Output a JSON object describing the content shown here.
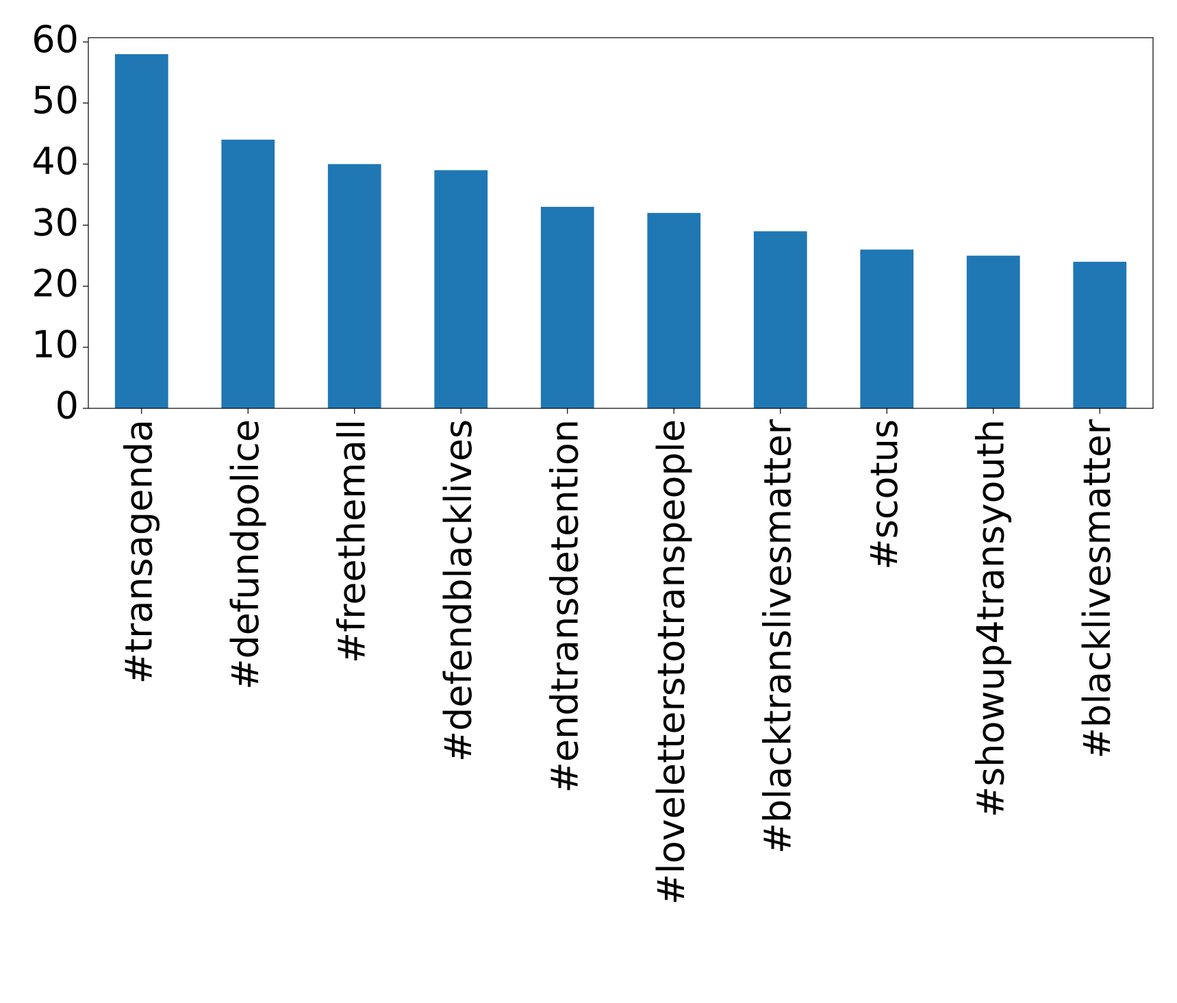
{
  "chart_data": {
    "type": "bar",
    "categories": [
      "#transagenda",
      "#defundpolice",
      "#freethemall",
      "#defendblacklives",
      "#endtransdetention",
      "#loveletterstotranspeople",
      "#blacktranslivesmatter",
      "#scotus",
      "#showup4transyouth",
      "#blacklivesmatter"
    ],
    "values": [
      58,
      44,
      40,
      39,
      33,
      32,
      29,
      26,
      25,
      24
    ],
    "color": "#1f77b4",
    "ylim": [
      0,
      60.7
    ],
    "yticks": [
      0,
      10,
      20,
      30,
      40,
      50,
      60
    ],
    "grid": false
  }
}
